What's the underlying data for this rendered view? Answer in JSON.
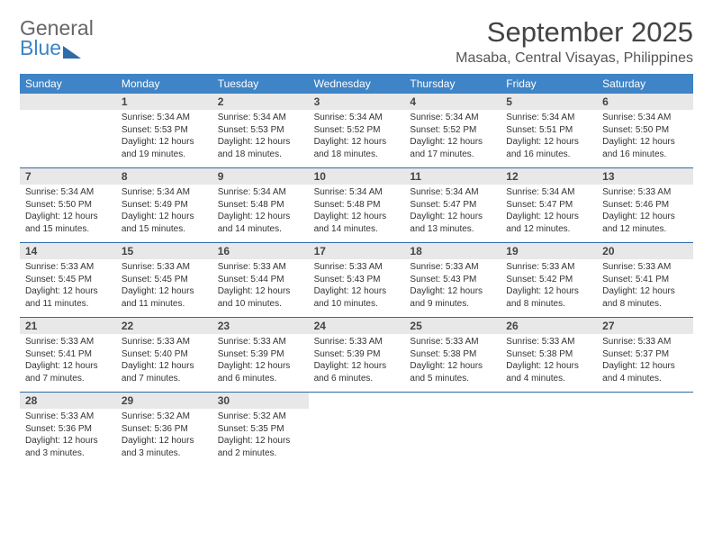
{
  "brand": {
    "line1": "General",
    "line2": "Blue"
  },
  "title": "September 2025",
  "location": "Masaba, Central Visayas, Philippines",
  "colors": {
    "header_bg": "#3e84c6",
    "header_text": "#ffffff",
    "daynum_bg": "#e8e8e8",
    "week_border": "#2e6ba8",
    "body_text": "#333333",
    "title_text": "#444444",
    "logo_gray": "#666666",
    "logo_blue": "#3e84c6"
  },
  "fonts": {
    "title_size_pt": 23,
    "location_size_pt": 12,
    "weekday_size_pt": 9,
    "daynum_size_pt": 9,
    "body_size_pt": 7.5
  },
  "weekdays": [
    "Sunday",
    "Monday",
    "Tuesday",
    "Wednesday",
    "Thursday",
    "Friday",
    "Saturday"
  ],
  "weeks": [
    [
      {
        "n": "",
        "sunrise": "",
        "sunset": "",
        "daylight1": "",
        "daylight2": ""
      },
      {
        "n": "1",
        "sunrise": "Sunrise: 5:34 AM",
        "sunset": "Sunset: 5:53 PM",
        "daylight1": "Daylight: 12 hours",
        "daylight2": "and 19 minutes."
      },
      {
        "n": "2",
        "sunrise": "Sunrise: 5:34 AM",
        "sunset": "Sunset: 5:53 PM",
        "daylight1": "Daylight: 12 hours",
        "daylight2": "and 18 minutes."
      },
      {
        "n": "3",
        "sunrise": "Sunrise: 5:34 AM",
        "sunset": "Sunset: 5:52 PM",
        "daylight1": "Daylight: 12 hours",
        "daylight2": "and 18 minutes."
      },
      {
        "n": "4",
        "sunrise": "Sunrise: 5:34 AM",
        "sunset": "Sunset: 5:52 PM",
        "daylight1": "Daylight: 12 hours",
        "daylight2": "and 17 minutes."
      },
      {
        "n": "5",
        "sunrise": "Sunrise: 5:34 AM",
        "sunset": "Sunset: 5:51 PM",
        "daylight1": "Daylight: 12 hours",
        "daylight2": "and 16 minutes."
      },
      {
        "n": "6",
        "sunrise": "Sunrise: 5:34 AM",
        "sunset": "Sunset: 5:50 PM",
        "daylight1": "Daylight: 12 hours",
        "daylight2": "and 16 minutes."
      }
    ],
    [
      {
        "n": "7",
        "sunrise": "Sunrise: 5:34 AM",
        "sunset": "Sunset: 5:50 PM",
        "daylight1": "Daylight: 12 hours",
        "daylight2": "and 15 minutes."
      },
      {
        "n": "8",
        "sunrise": "Sunrise: 5:34 AM",
        "sunset": "Sunset: 5:49 PM",
        "daylight1": "Daylight: 12 hours",
        "daylight2": "and 15 minutes."
      },
      {
        "n": "9",
        "sunrise": "Sunrise: 5:34 AM",
        "sunset": "Sunset: 5:48 PM",
        "daylight1": "Daylight: 12 hours",
        "daylight2": "and 14 minutes."
      },
      {
        "n": "10",
        "sunrise": "Sunrise: 5:34 AM",
        "sunset": "Sunset: 5:48 PM",
        "daylight1": "Daylight: 12 hours",
        "daylight2": "and 14 minutes."
      },
      {
        "n": "11",
        "sunrise": "Sunrise: 5:34 AM",
        "sunset": "Sunset: 5:47 PM",
        "daylight1": "Daylight: 12 hours",
        "daylight2": "and 13 minutes."
      },
      {
        "n": "12",
        "sunrise": "Sunrise: 5:34 AM",
        "sunset": "Sunset: 5:47 PM",
        "daylight1": "Daylight: 12 hours",
        "daylight2": "and 12 minutes."
      },
      {
        "n": "13",
        "sunrise": "Sunrise: 5:33 AM",
        "sunset": "Sunset: 5:46 PM",
        "daylight1": "Daylight: 12 hours",
        "daylight2": "and 12 minutes."
      }
    ],
    [
      {
        "n": "14",
        "sunrise": "Sunrise: 5:33 AM",
        "sunset": "Sunset: 5:45 PM",
        "daylight1": "Daylight: 12 hours",
        "daylight2": "and 11 minutes."
      },
      {
        "n": "15",
        "sunrise": "Sunrise: 5:33 AM",
        "sunset": "Sunset: 5:45 PM",
        "daylight1": "Daylight: 12 hours",
        "daylight2": "and 11 minutes."
      },
      {
        "n": "16",
        "sunrise": "Sunrise: 5:33 AM",
        "sunset": "Sunset: 5:44 PM",
        "daylight1": "Daylight: 12 hours",
        "daylight2": "and 10 minutes."
      },
      {
        "n": "17",
        "sunrise": "Sunrise: 5:33 AM",
        "sunset": "Sunset: 5:43 PM",
        "daylight1": "Daylight: 12 hours",
        "daylight2": "and 10 minutes."
      },
      {
        "n": "18",
        "sunrise": "Sunrise: 5:33 AM",
        "sunset": "Sunset: 5:43 PM",
        "daylight1": "Daylight: 12 hours",
        "daylight2": "and 9 minutes."
      },
      {
        "n": "19",
        "sunrise": "Sunrise: 5:33 AM",
        "sunset": "Sunset: 5:42 PM",
        "daylight1": "Daylight: 12 hours",
        "daylight2": "and 8 minutes."
      },
      {
        "n": "20",
        "sunrise": "Sunrise: 5:33 AM",
        "sunset": "Sunset: 5:41 PM",
        "daylight1": "Daylight: 12 hours",
        "daylight2": "and 8 minutes."
      }
    ],
    [
      {
        "n": "21",
        "sunrise": "Sunrise: 5:33 AM",
        "sunset": "Sunset: 5:41 PM",
        "daylight1": "Daylight: 12 hours",
        "daylight2": "and 7 minutes."
      },
      {
        "n": "22",
        "sunrise": "Sunrise: 5:33 AM",
        "sunset": "Sunset: 5:40 PM",
        "daylight1": "Daylight: 12 hours",
        "daylight2": "and 7 minutes."
      },
      {
        "n": "23",
        "sunrise": "Sunrise: 5:33 AM",
        "sunset": "Sunset: 5:39 PM",
        "daylight1": "Daylight: 12 hours",
        "daylight2": "and 6 minutes."
      },
      {
        "n": "24",
        "sunrise": "Sunrise: 5:33 AM",
        "sunset": "Sunset: 5:39 PM",
        "daylight1": "Daylight: 12 hours",
        "daylight2": "and 6 minutes."
      },
      {
        "n": "25",
        "sunrise": "Sunrise: 5:33 AM",
        "sunset": "Sunset: 5:38 PM",
        "daylight1": "Daylight: 12 hours",
        "daylight2": "and 5 minutes."
      },
      {
        "n": "26",
        "sunrise": "Sunrise: 5:33 AM",
        "sunset": "Sunset: 5:38 PM",
        "daylight1": "Daylight: 12 hours",
        "daylight2": "and 4 minutes."
      },
      {
        "n": "27",
        "sunrise": "Sunrise: 5:33 AM",
        "sunset": "Sunset: 5:37 PM",
        "daylight1": "Daylight: 12 hours",
        "daylight2": "and 4 minutes."
      }
    ],
    [
      {
        "n": "28",
        "sunrise": "Sunrise: 5:33 AM",
        "sunset": "Sunset: 5:36 PM",
        "daylight1": "Daylight: 12 hours",
        "daylight2": "and 3 minutes."
      },
      {
        "n": "29",
        "sunrise": "Sunrise: 5:32 AM",
        "sunset": "Sunset: 5:36 PM",
        "daylight1": "Daylight: 12 hours",
        "daylight2": "and 3 minutes."
      },
      {
        "n": "30",
        "sunrise": "Sunrise: 5:32 AM",
        "sunset": "Sunset: 5:35 PM",
        "daylight1": "Daylight: 12 hours",
        "daylight2": "and 2 minutes."
      },
      {
        "n": "",
        "sunrise": "",
        "sunset": "",
        "daylight1": "",
        "daylight2": ""
      },
      {
        "n": "",
        "sunrise": "",
        "sunset": "",
        "daylight1": "",
        "daylight2": ""
      },
      {
        "n": "",
        "sunrise": "",
        "sunset": "",
        "daylight1": "",
        "daylight2": ""
      },
      {
        "n": "",
        "sunrise": "",
        "sunset": "",
        "daylight1": "",
        "daylight2": ""
      }
    ]
  ]
}
